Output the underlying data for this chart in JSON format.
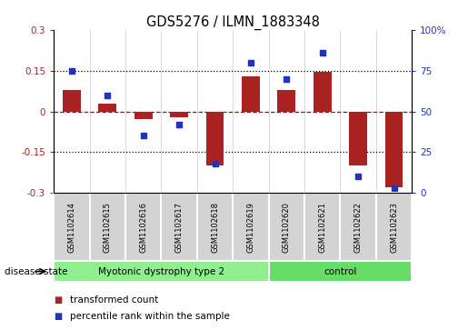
{
  "title": "GDS5276 / ILMN_1883348",
  "samples": [
    "GSM1102614",
    "GSM1102615",
    "GSM1102616",
    "GSM1102617",
    "GSM1102618",
    "GSM1102619",
    "GSM1102620",
    "GSM1102621",
    "GSM1102622",
    "GSM1102623"
  ],
  "bar_values": [
    0.08,
    0.03,
    -0.03,
    -0.02,
    -0.2,
    0.13,
    0.08,
    0.145,
    -0.2,
    -0.28
  ],
  "dot_values": [
    75,
    60,
    35,
    42,
    18,
    80,
    70,
    86,
    10,
    3
  ],
  "ylim_left": [
    -0.3,
    0.3
  ],
  "ylim_right": [
    0,
    100
  ],
  "yticks_left": [
    -0.3,
    -0.15,
    0.0,
    0.15,
    0.3
  ],
  "yticks_right": [
    0,
    25,
    50,
    75,
    100
  ],
  "bar_color": "#aa2222",
  "dot_color": "#2233bb",
  "group1_label": "Myotonic dystrophy type 2",
  "group2_label": "control",
  "group1_color": "#90ee90",
  "group2_color": "#66dd66",
  "disease_state_label": "disease state",
  "legend1": "transformed count",
  "legend2": "percentile rank within the sample",
  "hline_color": "#cc0000",
  "dotted_color": "black",
  "bar_width": 0.5,
  "n_group1": 6,
  "n_group2": 4,
  "cell_color": "#d3d3d3",
  "border_color": "white"
}
